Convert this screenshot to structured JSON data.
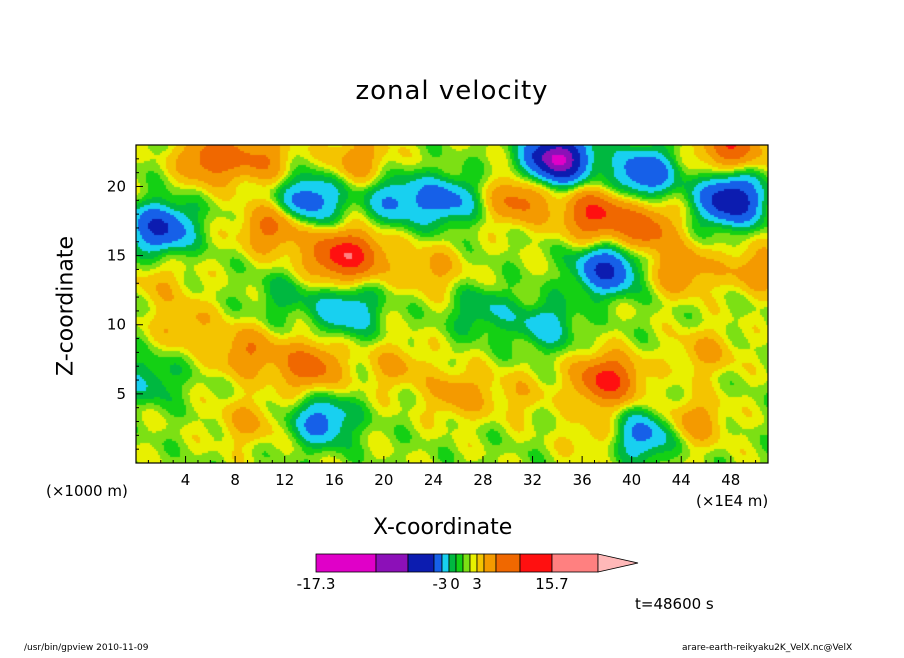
{
  "chart_data": {
    "type": "heatmap",
    "title": "zonal velocity",
    "xlabel": "X-coordinate",
    "ylabel": "Z-coordinate",
    "x_unit_label": "(×1000 m)",
    "x_scale_label": "(×1E4 m)",
    "xlim": [
      0,
      51
    ],
    "ylim": [
      0,
      23
    ],
    "x_ticks": [
      4,
      8,
      12,
      16,
      20,
      24,
      28,
      32,
      36,
      40,
      44,
      48
    ],
    "y_ticks": [
      5,
      10,
      15,
      20
    ],
    "colorbar": {
      "colors": [
        "#e000c8",
        "#8c10b8",
        "#0c1cb0",
        "#1660e8",
        "#18d0f0",
        "#00b840",
        "#14d014",
        "#7ce014",
        "#e8f000",
        "#f4c400",
        "#f49a00",
        "#f06800",
        "#ff1010",
        "#ff8080",
        "#ffb8b8"
      ],
      "tick_labels": [
        "-17.3",
        "-3",
        "0",
        "3",
        "15.7"
      ],
      "min": -17.3,
      "max": 15.7
    },
    "features": [
      {
        "x": 2,
        "z": 17,
        "value": -9
      },
      {
        "x": 6,
        "z": 22,
        "value": 7
      },
      {
        "x": 10,
        "z": 22,
        "value": 5
      },
      {
        "x": 9,
        "z": 3,
        "value": 3
      },
      {
        "x": 1,
        "z": 6,
        "value": -3
      },
      {
        "x": 4,
        "z": 10,
        "value": 3
      },
      {
        "x": 9,
        "z": 8,
        "value": 5
      },
      {
        "x": 14,
        "z": 7,
        "value": 7
      },
      {
        "x": 11,
        "z": 17,
        "value": 6
      },
      {
        "x": 16,
        "z": 15,
        "value": 7
      },
      {
        "x": 18,
        "z": 15,
        "value": 6
      },
      {
        "x": 14,
        "z": 19,
        "value": -7
      },
      {
        "x": 18,
        "z": 22,
        "value": 4
      },
      {
        "x": 21,
        "z": 19,
        "value": -5
      },
      {
        "x": 25,
        "z": 19,
        "value": -6
      },
      {
        "x": 24,
        "z": 14,
        "value": 3
      },
      {
        "x": 28,
        "z": 11,
        "value": -3
      },
      {
        "x": 31,
        "z": 19,
        "value": 6
      },
      {
        "x": 37,
        "z": 18,
        "value": 9
      },
      {
        "x": 41,
        "z": 17,
        "value": 7
      },
      {
        "x": 38,
        "z": 14,
        "value": -9
      },
      {
        "x": 33,
        "z": 10,
        "value": -4
      },
      {
        "x": 38,
        "z": 6,
        "value": 10
      },
      {
        "x": 46,
        "z": 8,
        "value": 3
      },
      {
        "x": 48,
        "z": 19,
        "value": -12
      },
      {
        "x": 34,
        "z": 22,
        "value": -16
      },
      {
        "x": 41,
        "z": 21,
        "value": -8
      },
      {
        "x": 50,
        "z": 14,
        "value": 4
      },
      {
        "x": 21,
        "z": 7,
        "value": 3
      },
      {
        "x": 31,
        "z": 5,
        "value": 2
      },
      {
        "x": 41,
        "z": 2,
        "value": -6
      },
      {
        "x": 37,
        "z": 2,
        "value": 2
      },
      {
        "x": 45,
        "z": 3,
        "value": 4
      },
      {
        "x": 15,
        "z": 3,
        "value": -6
      },
      {
        "x": 26,
        "z": 5,
        "value": 4
      },
      {
        "x": 17,
        "z": 11,
        "value": -5
      },
      {
        "x": 2,
        "z": 13,
        "value": 2
      },
      {
        "x": 48,
        "z": 23,
        "value": 8
      },
      {
        "x": 44,
        "z": 14,
        "value": 5
      },
      {
        "x": 12,
        "z": 12,
        "value": -2
      }
    ]
  },
  "annotations": {
    "time_label": "t=48600 s",
    "footer_left": "/usr/bin/gpview   2010-11-09",
    "footer_right": "arare-earth-reikyaku2K_VelX.nc@VelX"
  }
}
